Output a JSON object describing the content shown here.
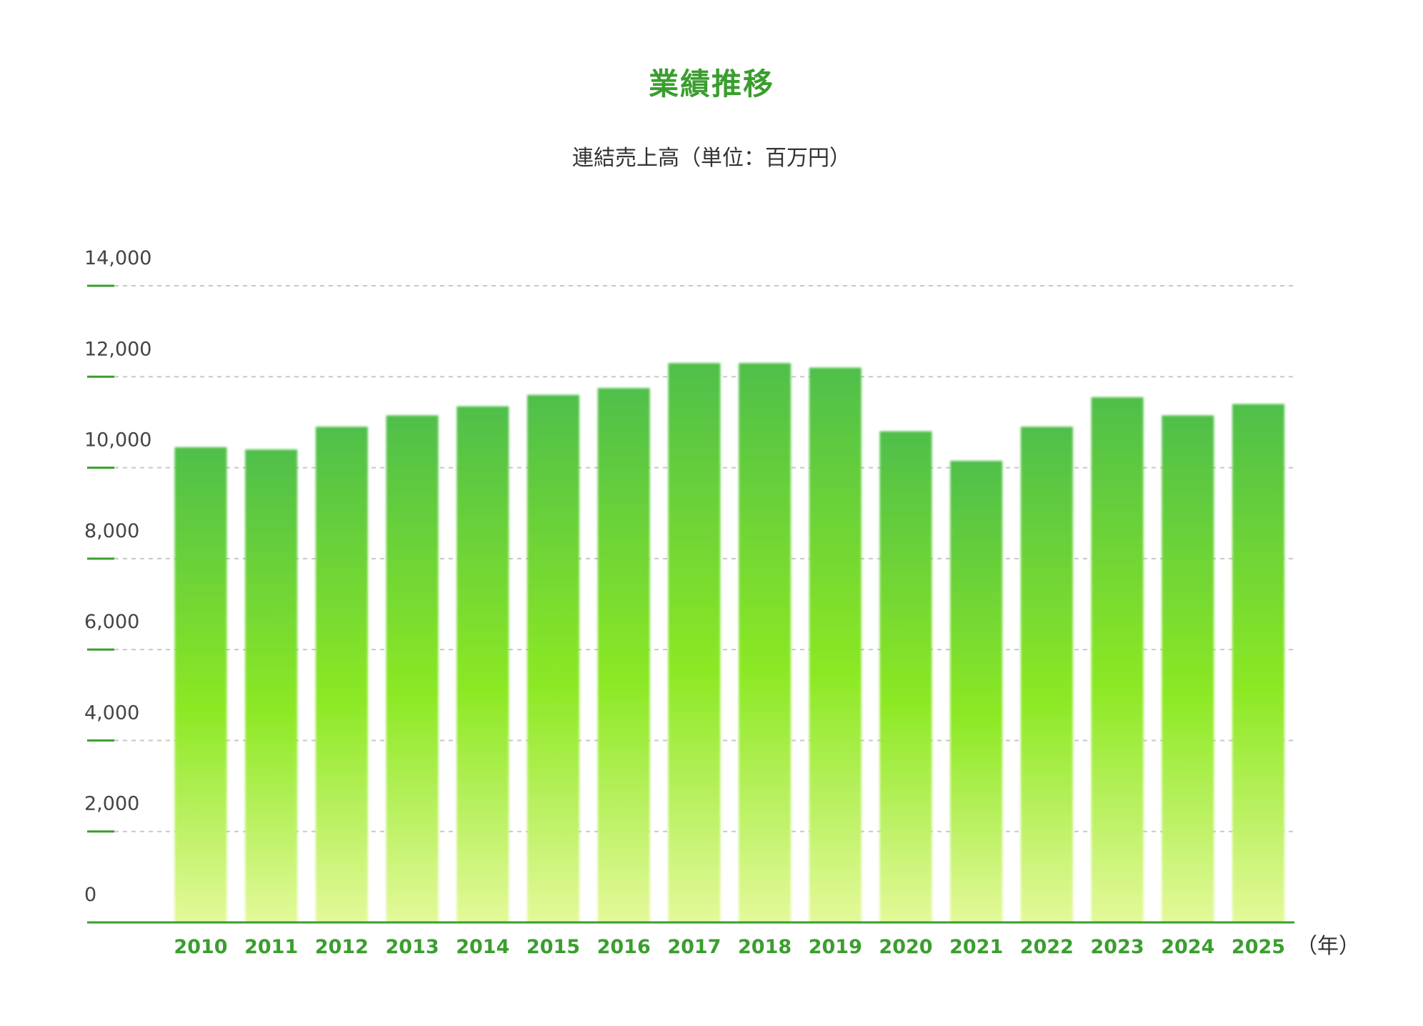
{
  "title": "業績推移",
  "subtitle": "連結売上高（単位：百万円）",
  "colors": {
    "title": "#3a9e2e",
    "axis": "#3a9e2e",
    "bar_top": "#4fbf4a",
    "bar_mid": "#8ce824",
    "bar_bottom": "#e4f99a",
    "grid": "#c8c8c8"
  },
  "chart_data": {
    "type": "bar",
    "title": "業績推移",
    "subtitle": "連結売上高（単位：百万円）",
    "x_unit_label": "（年）",
    "categories": [
      "2010",
      "2011",
      "2012",
      "2013",
      "2014",
      "2015",
      "2016",
      "2017",
      "2018",
      "2019",
      "2020",
      "2021",
      "2022",
      "2023",
      "2024",
      "2025"
    ],
    "values": [
      10450,
      10400,
      10900,
      11150,
      11350,
      11600,
      11750,
      12300,
      12300,
      12200,
      10800,
      10150,
      10900,
      11550,
      11150,
      11400
    ],
    "ylim": [
      0,
      14000
    ],
    "yticks": [
      0,
      2000,
      4000,
      6000,
      8000,
      10000,
      12000,
      14000
    ],
    "ytick_labels": [
      "0",
      "2,000",
      "4,000",
      "6,000",
      "8,000",
      "10,000",
      "12,000",
      "14,000"
    ],
    "grid": true
  }
}
